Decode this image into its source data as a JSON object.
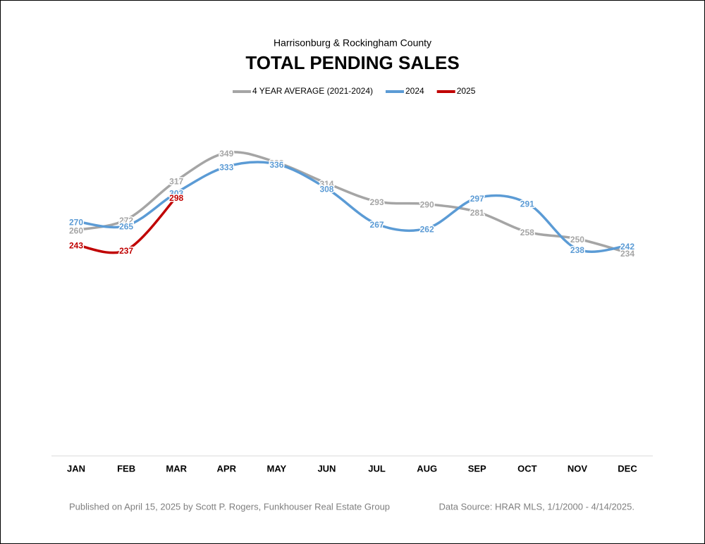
{
  "chart_data": {
    "type": "line",
    "subtitle": "Harrisonburg & Rockingham County",
    "title": "TOTAL PENDING SALES",
    "categories": [
      "JAN",
      "FEB",
      "MAR",
      "APR",
      "MAY",
      "JUN",
      "JUL",
      "AUG",
      "SEP",
      "OCT",
      "NOV",
      "DEC"
    ],
    "series": [
      {
        "name": "4 YEAR AVERAGE (2021-2024)",
        "color": "#a5a5a5",
        "values": [
          260,
          272,
          317,
          349,
          338,
          314,
          293,
          290,
          281,
          258,
          250,
          234
        ]
      },
      {
        "name": "2024",
        "color": "#5b9bd5",
        "values": [
          270,
          265,
          303,
          333,
          336,
          308,
          267,
          262,
          297,
          291,
          238,
          242
        ]
      },
      {
        "name": "2025",
        "color": "#c00000",
        "values": [
          243,
          237,
          298,
          null,
          null,
          null,
          null,
          null,
          null,
          null,
          null,
          null
        ]
      }
    ],
    "ylim": [
      0,
      400
    ],
    "footer_left": "Published on April 15, 2025 by Scott P. Rogers, Funkhouser Real Estate Group",
    "footer_right": "Data Source: HRAR MLS, 1/1/2000 - 4/14/2025."
  }
}
